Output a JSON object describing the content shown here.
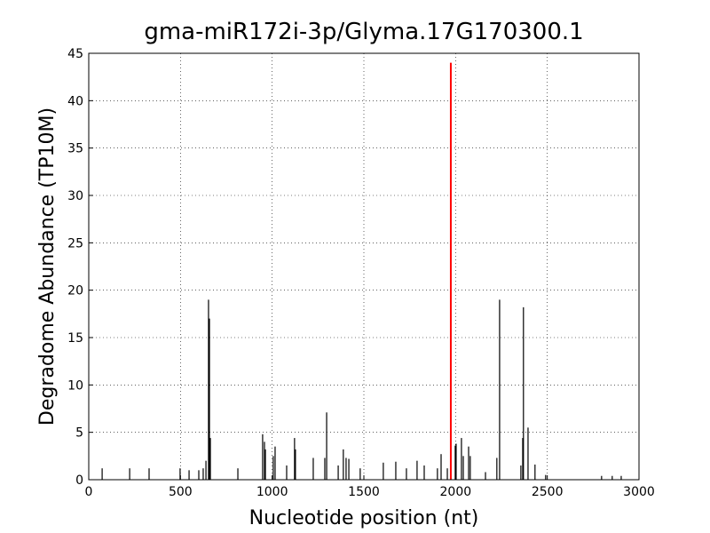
{
  "chart_data": {
    "type": "spike",
    "title": "gma-miR172i-3p/Glyma.17G170300.1",
    "x_label": "Nucleotide position (nt)",
    "y_label": "Degradome Abundance (TP10M)",
    "xlim": [
      0,
      3000
    ],
    "xticks": [
      0,
      500,
      1000,
      1500,
      2000,
      2500,
      3000
    ],
    "ylim": [
      0,
      45
    ],
    "yticks": [
      0,
      5,
      10,
      15,
      20,
      25,
      30,
      35,
      40,
      45
    ],
    "grid": true,
    "series": [
      {
        "color": "#000000",
        "x": [
          73,
          223,
          329,
          498,
          547,
          600,
          624,
          639,
          653,
          658,
          663,
          813,
          948,
          958,
          963,
          1006,
          1016,
          1079,
          1122,
          1127,
          1224,
          1287,
          1297,
          1360,
          1388,
          1403,
          1418,
          1480,
          1606,
          1674,
          1732,
          1790,
          1829,
          1901,
          1921,
          1955,
          1998,
          2003,
          2032,
          2042,
          2071,
          2080,
          2163,
          2225,
          2240,
          2356,
          2366,
          2370,
          2395,
          2433,
          2491,
          2796,
          2854,
          2903
        ],
        "values": [
          1.2,
          1.2,
          1.2,
          1.2,
          1.0,
          1.0,
          1.2,
          2.0,
          19,
          17,
          4.4,
          1.2,
          4.8,
          4.0,
          3.2,
          2.5,
          3.5,
          1.5,
          4.4,
          3.2,
          2.3,
          2.3,
          7.1,
          1.5,
          3.2,
          2.3,
          2.2,
          1.2,
          1.8,
          1.9,
          1.2,
          2.0,
          1.5,
          1.2,
          2.7,
          1.2,
          3.6,
          3.8,
          4.4,
          2.5,
          3.5,
          2.5,
          0.8,
          2.3,
          19,
          1.5,
          4.4,
          18.2,
          5.5,
          1.6,
          0.5,
          0.4,
          0.4,
          0.4
        ]
      },
      {
        "color": "#ff0000",
        "x": [
          1974
        ],
        "values": [
          44
        ]
      }
    ]
  }
}
